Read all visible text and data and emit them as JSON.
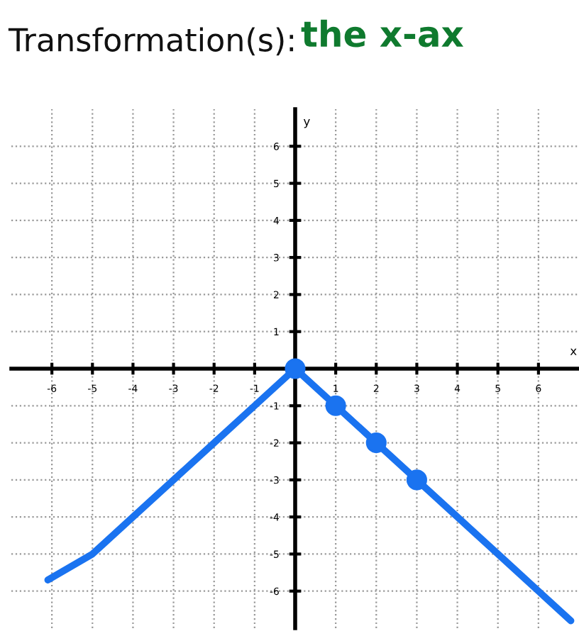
{
  "chart_data": {
    "type": "line",
    "title": "Transformation(s):",
    "annotations": [
      "the x-ax"
    ],
    "xlabel": "x",
    "ylabel": "y",
    "xlim": [
      -7,
      7
    ],
    "ylim": [
      -7,
      7
    ],
    "xticks": [
      -6,
      -5,
      -4,
      -3,
      -2,
      -1,
      {
        "value": 0,
        "label": null
      },
      1,
      2,
      3,
      4,
      5,
      6
    ],
    "yticks": [
      -6,
      -5,
      -4,
      -3,
      -2,
      -1,
      {
        "value": 0,
        "label": null
      },
      1,
      2,
      3,
      4,
      5,
      6
    ],
    "grid": true,
    "series": [
      {
        "color": "#1a73f0",
        "marker": "none",
        "x": [
          -6.1,
          -5,
          -4,
          -3,
          -2,
          -1,
          0,
          1,
          2,
          3,
          4,
          5,
          6,
          6.8
        ],
        "values": [
          -5.7,
          -5,
          -4,
          -3,
          -2,
          -1,
          0,
          -1,
          -2,
          -3,
          -4,
          -5,
          -6,
          -6.8
        ]
      },
      {
        "type": "scatter",
        "color": "#1a73f0",
        "marker": "circle",
        "x": [
          0,
          1,
          2,
          3
        ],
        "values": [
          0,
          -1,
          -2,
          -3
        ]
      }
    ]
  }
}
